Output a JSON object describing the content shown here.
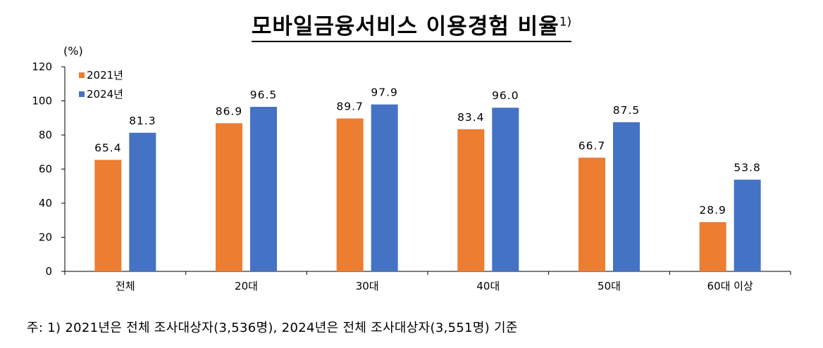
{
  "title": "모바일금융서비스 이용경험 비율",
  "title_sup": "1)",
  "footnote": "주: 1) 2021년은 전체 조사대상자(3,536명), 2024년은 전체 조사대상자(3,551명) 기준",
  "colors": {
    "series_2021": "#ED7D31",
    "series_2024": "#4472C4",
    "axis": "#000000"
  },
  "chart_data": {
    "type": "bar",
    "title": "모바일금융서비스 이용경험 비율",
    "ylabel": "(%)",
    "xlabel": "",
    "categories": [
      "전체",
      "20대",
      "30대",
      "40대",
      "50대",
      "60대 이상"
    ],
    "series": [
      {
        "name": "2021년",
        "values": [
          65.4,
          86.9,
          89.7,
          83.4,
          66.7,
          28.9
        ]
      },
      {
        "name": "2024년",
        "values": [
          81.3,
          96.5,
          97.9,
          96.0,
          87.5,
          53.8
        ]
      }
    ],
    "value_labels": [
      [
        "65.4",
        "86.9",
        "89.7",
        "83.4",
        "66.7",
        "28.9"
      ],
      [
        "81.3",
        "96.5",
        "97.9",
        "96.0",
        "87.5",
        "53.8"
      ]
    ],
    "ylim": [
      0,
      120
    ],
    "yticks": [
      0,
      20,
      40,
      60,
      80,
      100,
      120
    ],
    "grid": false,
    "legend": "top-left"
  }
}
